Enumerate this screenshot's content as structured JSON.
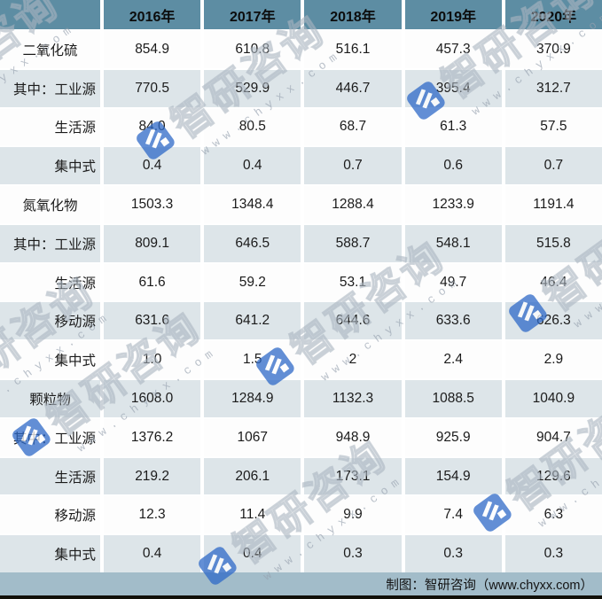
{
  "chart_data": {
    "type": "table",
    "columns": [
      "",
      "2016年",
      "2017年",
      "2018年",
      "2019年",
      "2020年"
    ],
    "rows": [
      {
        "label": "二氧化硫",
        "type": "category",
        "values": [
          "854.9",
          "610.8",
          "516.1",
          "457.3",
          "370.9"
        ]
      },
      {
        "label": "其中：工业源",
        "type": "sub",
        "values": [
          "770.5",
          "529.9",
          "446.7",
          "395.4",
          "312.7"
        ]
      },
      {
        "label": "生活源",
        "type": "sub",
        "values": [
          "84.0",
          "80.5",
          "68.7",
          "61.3",
          "57.5"
        ]
      },
      {
        "label": "集中式",
        "type": "sub",
        "values": [
          "0.4",
          "0.4",
          "0.7",
          "0.6",
          "0.7"
        ]
      },
      {
        "label": "氮氧化物",
        "type": "category",
        "values": [
          "1503.3",
          "1348.4",
          "1288.4",
          "1233.9",
          "1191.4"
        ]
      },
      {
        "label": "其中：工业源",
        "type": "sub",
        "values": [
          "809.1",
          "646.5",
          "588.7",
          "548.1",
          "515.8"
        ]
      },
      {
        "label": "生活源",
        "type": "sub",
        "values": [
          "61.6",
          "59.2",
          "53.1",
          "49.7",
          "46.4"
        ]
      },
      {
        "label": "移动源",
        "type": "sub",
        "values": [
          "631.6",
          "641.2",
          "644.6",
          "633.6",
          "626.3"
        ]
      },
      {
        "label": "集中式",
        "type": "sub",
        "values": [
          "1.0",
          "1.5",
          "2",
          "2.4",
          "2.9"
        ]
      },
      {
        "label": "颗粒物",
        "type": "category",
        "values": [
          "1608.0",
          "1284.9",
          "1132.3",
          "1088.5",
          "1040.9"
        ]
      },
      {
        "label": "其中：工业源",
        "type": "sub",
        "values": [
          "1376.2",
          "1067",
          "948.9",
          "925.9",
          "904.7"
        ]
      },
      {
        "label": "生活源",
        "type": "sub",
        "values": [
          "219.2",
          "206.1",
          "173.1",
          "154.9",
          "129.6"
        ]
      },
      {
        "label": "移动源",
        "type": "sub",
        "values": [
          "12.3",
          "11.4",
          "9.9",
          "7.4",
          "6.3"
        ]
      },
      {
        "label": "集中式",
        "type": "sub",
        "values": [
          "0.4",
          "0.4",
          "0.3",
          "0.3",
          "0.3"
        ]
      }
    ]
  },
  "footer": {
    "credit": "制图：智研咨询（www.chyxx.com）"
  },
  "watermark": {
    "brand": "智研咨询",
    "url": "www.chyxx.com",
    "logo_color": "#2f6ac8"
  },
  "colors": {
    "header_bg": "#5d8da3",
    "row_bg": "#fdfdfd",
    "row_alt_bg": "#dde5e9",
    "footer_bg": "#a2bcc9",
    "bottom_bar": "#111008"
  }
}
